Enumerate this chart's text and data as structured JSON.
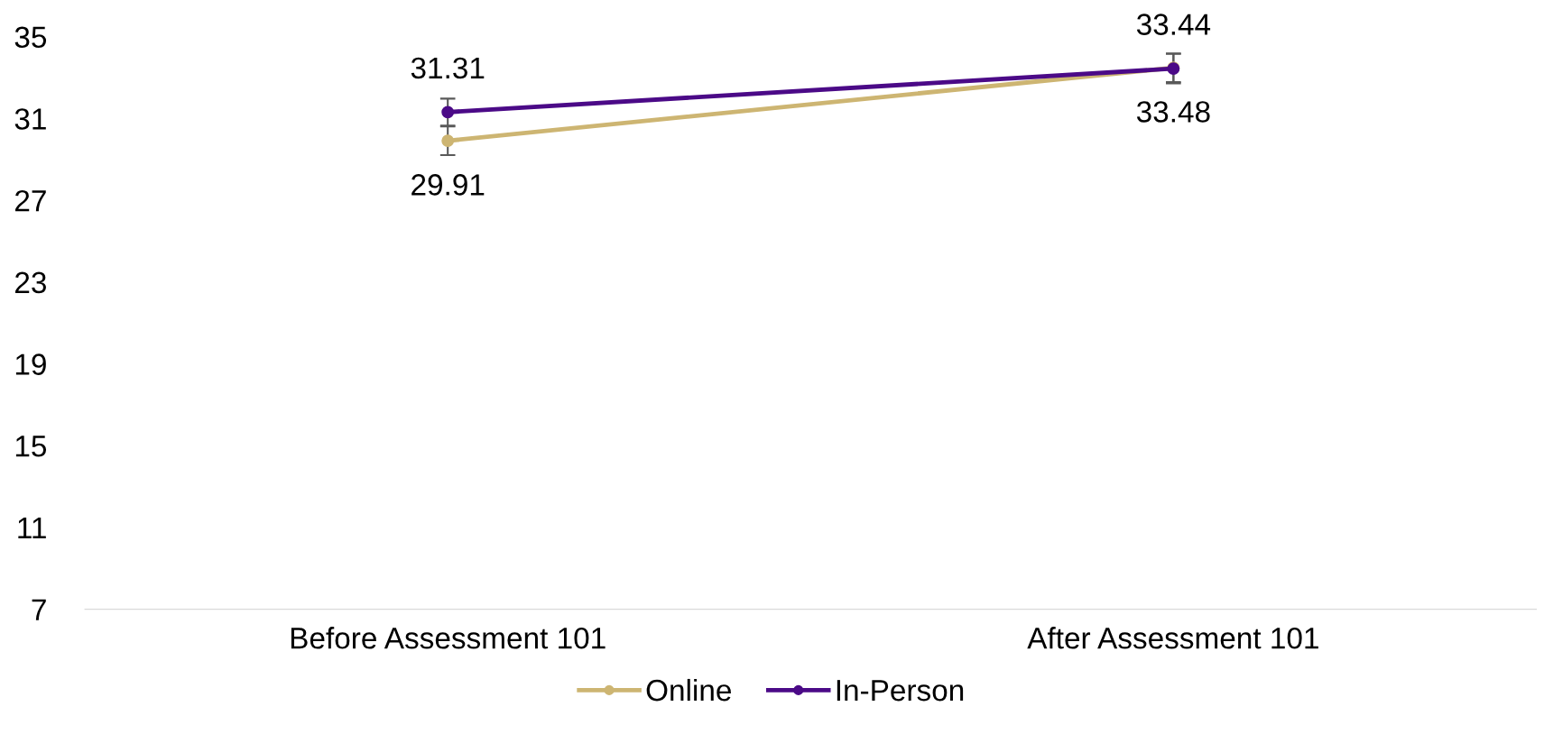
{
  "chart_data": {
    "type": "line",
    "categories": [
      "Before Assessment 101",
      "After Assessment 101"
    ],
    "series": [
      {
        "name": "Online",
        "color": "#cdb572",
        "values": [
          29.91,
          33.48
        ],
        "errors": [
          0.7,
          0.7
        ]
      },
      {
        "name": "In-Person",
        "color": "#4b0a87",
        "values": [
          31.31,
          33.44
        ],
        "errors": [
          0.66,
          0.72
        ]
      }
    ],
    "ylim": [
      7,
      35
    ],
    "yticks": [
      7,
      11,
      15,
      19,
      23,
      27,
      31,
      35
    ],
    "grid": false,
    "legend": "bottom",
    "marker": "circle",
    "line_style": "solid",
    "data_labels": true
  }
}
